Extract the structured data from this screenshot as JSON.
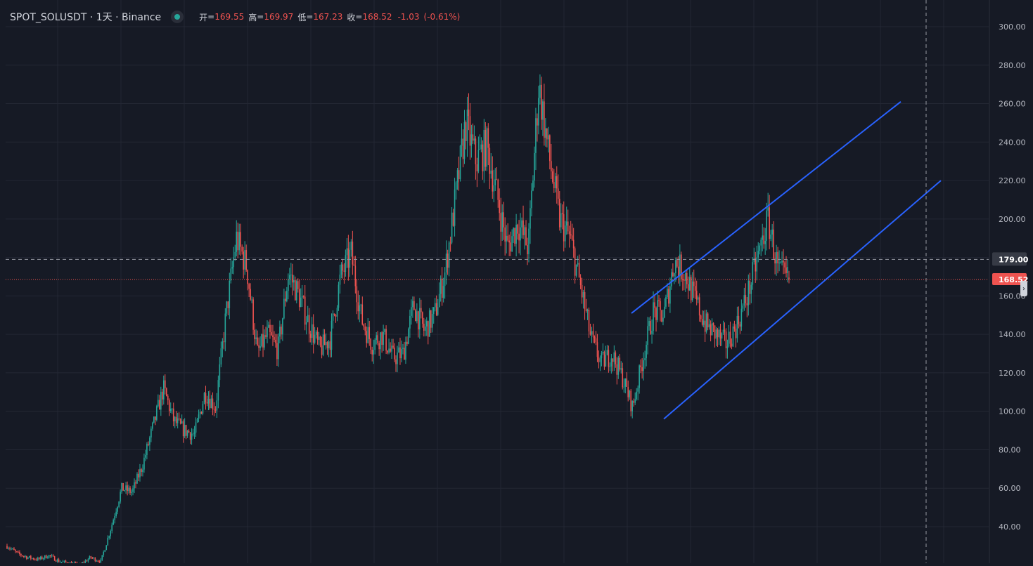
{
  "legend": {
    "symbol": "SPOT_SOLUSDT",
    "interval": "1天",
    "exchange": "Binance",
    "open_label": "开",
    "open": "169.55",
    "high_label": "高",
    "high": "169.97",
    "low_label": "低",
    "low": "167.23",
    "close_label": "收",
    "close": "168.52",
    "change": "-1.03",
    "change_pct": "(-0.61%)"
  },
  "colors": {
    "background": "#161a25",
    "grid": "#232734",
    "up": "#26a69a",
    "down": "#ef5350",
    "trendline": "#2962ff",
    "axis_text": "#b2b5be"
  },
  "chart_data": {
    "type": "candlestick",
    "price_axis": {
      "ticks": [
        40,
        60,
        80,
        100,
        120,
        140,
        160,
        200,
        220,
        240,
        260,
        280,
        300
      ],
      "range": [
        20,
        306
      ],
      "side": "right"
    },
    "crosshair_price": 179.0,
    "crosshair_label": "179.00",
    "last_price": 168.52,
    "last_price_label": "168.52",
    "trend_channel": {
      "upper": {
        "from_price": 151,
        "to_price": 261
      },
      "lower": {
        "from_price": 96,
        "to_price": 220
      }
    },
    "series": [
      {
        "key": 0,
        "close": 30
      },
      {
        "key": 1,
        "close": 26
      },
      {
        "key": 2,
        "close": 24
      },
      {
        "key": 3,
        "close": 23
      },
      {
        "key": 4,
        "close": 25
      },
      {
        "key": 5,
        "close": 22
      },
      {
        "key": 6,
        "close": 21
      },
      {
        "key": 7,
        "close": 20
      },
      {
        "key": 8,
        "close": 24
      },
      {
        "key": 9,
        "close": 22
      },
      {
        "key": 10,
        "close": 40
      },
      {
        "key": 11,
        "close": 60
      },
      {
        "key": 12,
        "close": 58
      },
      {
        "key": 13,
        "close": 72
      },
      {
        "key": 14,
        "close": 92
      },
      {
        "key": 15,
        "close": 112
      },
      {
        "key": 16,
        "close": 95
      },
      {
        "key": 17,
        "close": 90
      },
      {
        "key": 18,
        "close": 88
      },
      {
        "key": 19,
        "close": 110
      },
      {
        "key": 20,
        "close": 102
      },
      {
        "key": 21,
        "close": 150
      },
      {
        "key": 22,
        "close": 190
      },
      {
        "key": 23,
        "close": 175
      },
      {
        "key": 24,
        "close": 130
      },
      {
        "key": 25,
        "close": 140
      },
      {
        "key": 26,
        "close": 132
      },
      {
        "key": 27,
        "close": 172
      },
      {
        "key": 28,
        "close": 160
      },
      {
        "key": 29,
        "close": 145
      },
      {
        "key": 30,
        "close": 132
      },
      {
        "key": 31,
        "close": 138
      },
      {
        "key": 32,
        "close": 170
      },
      {
        "key": 33,
        "close": 182
      },
      {
        "key": 34,
        "close": 148
      },
      {
        "key": 35,
        "close": 135
      },
      {
        "key": 36,
        "close": 140
      },
      {
        "key": 37,
        "close": 128
      },
      {
        "key": 38,
        "close": 130
      },
      {
        "key": 39,
        "close": 155
      },
      {
        "key": 40,
        "close": 142
      },
      {
        "key": 41,
        "close": 150
      },
      {
        "key": 42,
        "close": 172
      },
      {
        "key": 43,
        "close": 210
      },
      {
        "key": 44,
        "close": 250
      },
      {
        "key": 45,
        "close": 230
      },
      {
        "key": 46,
        "close": 238
      },
      {
        "key": 47,
        "close": 212
      },
      {
        "key": 48,
        "close": 185
      },
      {
        "key": 49,
        "close": 198
      },
      {
        "key": 50,
        "close": 185
      },
      {
        "key": 51,
        "close": 270
      },
      {
        "key": 52,
        "close": 232
      },
      {
        "key": 53,
        "close": 200
      },
      {
        "key": 54,
        "close": 190
      },
      {
        "key": 55,
        "close": 165
      },
      {
        "key": 56,
        "close": 138
      },
      {
        "key": 57,
        "close": 125
      },
      {
        "key": 58,
        "close": 130
      },
      {
        "key": 59,
        "close": 118
      },
      {
        "key": 60,
        "close": 102
      },
      {
        "key": 61,
        "close": 128
      },
      {
        "key": 62,
        "close": 152
      },
      {
        "key": 63,
        "close": 150
      },
      {
        "key": 64,
        "close": 178
      },
      {
        "key": 65,
        "close": 172
      },
      {
        "key": 66,
        "close": 158
      },
      {
        "key": 67,
        "close": 145
      },
      {
        "key": 68,
        "close": 140
      },
      {
        "key": 69,
        "close": 135
      },
      {
        "key": 70,
        "close": 145
      },
      {
        "key": 71,
        "close": 160
      },
      {
        "key": 72,
        "close": 180
      },
      {
        "key": 73,
        "close": 200
      },
      {
        "key": 74,
        "close": 172
      },
      {
        "key": 75,
        "close": 168.52
      }
    ]
  }
}
